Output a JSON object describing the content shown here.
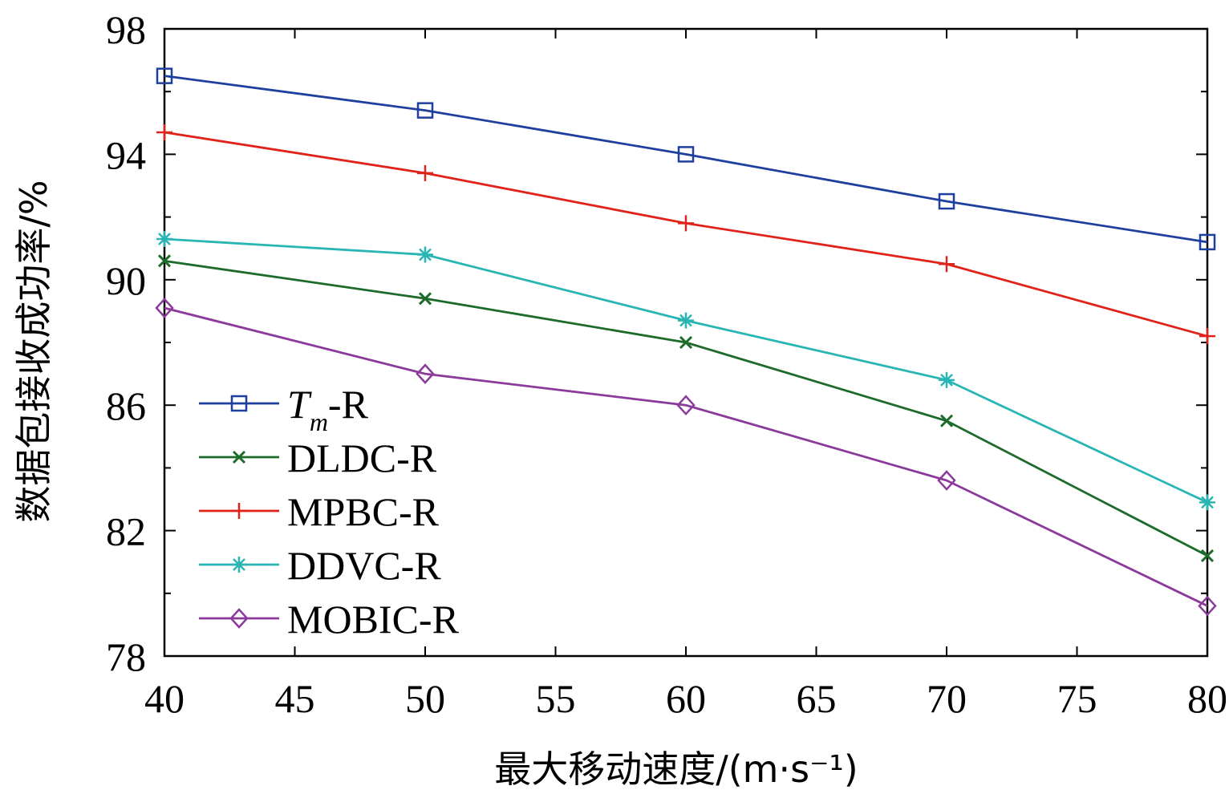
{
  "chart_data": {
    "type": "line",
    "xlabel": "最大移动速度/(m·s⁻¹)",
    "ylabel": "数据包接收成功率/%",
    "xlim": [
      40,
      80
    ],
    "ylim": [
      78,
      98
    ],
    "xticks": [
      40,
      45,
      50,
      55,
      60,
      65,
      70,
      75,
      80
    ],
    "yticks": [
      78,
      82,
      86,
      90,
      94,
      98
    ],
    "grid": false,
    "legend": "bottom-left",
    "x": [
      40,
      50,
      60,
      70,
      80
    ],
    "series": [
      {
        "name": "T",
        "name_sub": "m",
        "name_suffix": "-R",
        "marker": "square",
        "color": "#1f3f9f",
        "values": [
          96.5,
          95.4,
          94.0,
          92.5,
          91.2
        ]
      },
      {
        "name": "DLDC-R",
        "marker": "x",
        "color": "#1d6b2a",
        "values": [
          90.6,
          89.4,
          88.0,
          85.5,
          81.2
        ]
      },
      {
        "name": "MPBC-R",
        "marker": "plus",
        "color": "#e0221a",
        "values": [
          94.7,
          93.4,
          91.8,
          90.5,
          88.2
        ]
      },
      {
        "name": "DDVC-R",
        "marker": "asterisk",
        "color": "#2ab5b5",
        "values": [
          91.3,
          90.8,
          88.7,
          86.8,
          82.9
        ]
      },
      {
        "name": "MOBIC-R",
        "marker": "diamond",
        "color": "#8b3a9b",
        "values": [
          89.1,
          87.0,
          86.0,
          83.6,
          79.6
        ]
      }
    ]
  }
}
